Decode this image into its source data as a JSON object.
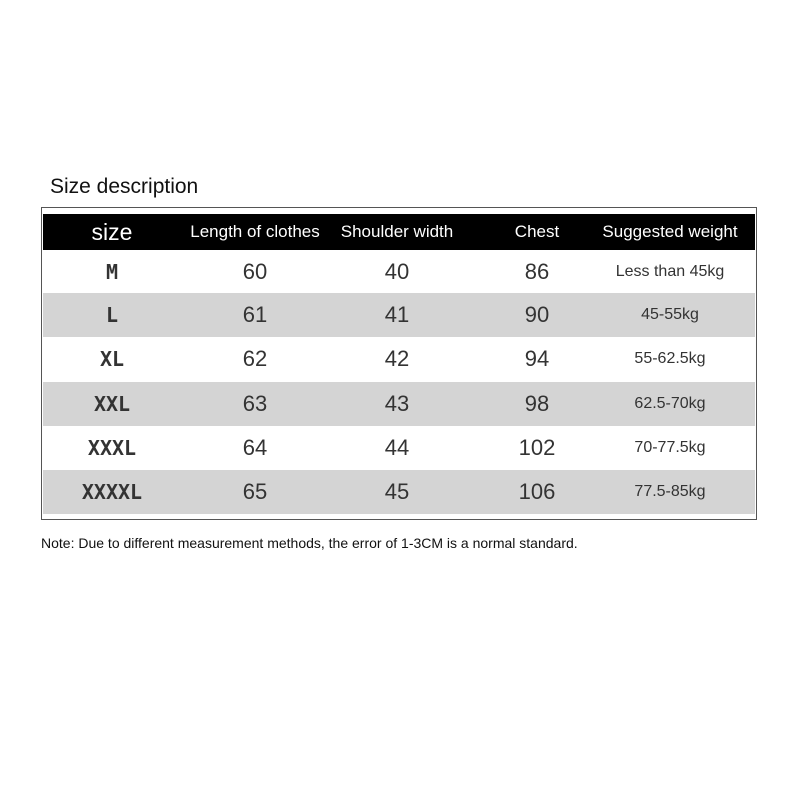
{
  "title": "Size description",
  "headers": [
    "size",
    "Length of clothes",
    "Shoulder width",
    "Chest",
    "Suggested weight"
  ],
  "rows": [
    {
      "size": "M",
      "length": "60",
      "shoulder": "40",
      "chest": "86",
      "weight": "Less than 45kg"
    },
    {
      "size": "L",
      "length": "61",
      "shoulder": "41",
      "chest": "90",
      "weight": "45-55kg"
    },
    {
      "size": "XL",
      "length": "62",
      "shoulder": "42",
      "chest": "94",
      "weight": "55-62.5kg"
    },
    {
      "size": "XXL",
      "length": "63",
      "shoulder": "43",
      "chest": "98",
      "weight": "62.5-70kg"
    },
    {
      "size": "XXXL",
      "length": "64",
      "shoulder": "44",
      "chest": "102",
      "weight": "70-77.5kg"
    },
    {
      "size": "XXXXL",
      "length": "65",
      "shoulder": "45",
      "chest": "106",
      "weight": "77.5-85kg"
    }
  ],
  "note": "Note: Due to different measurement methods, the error of 1-3CM is a normal standard.",
  "colors": {
    "header_bg": "#000000",
    "stripe": "#d4d4d4"
  }
}
